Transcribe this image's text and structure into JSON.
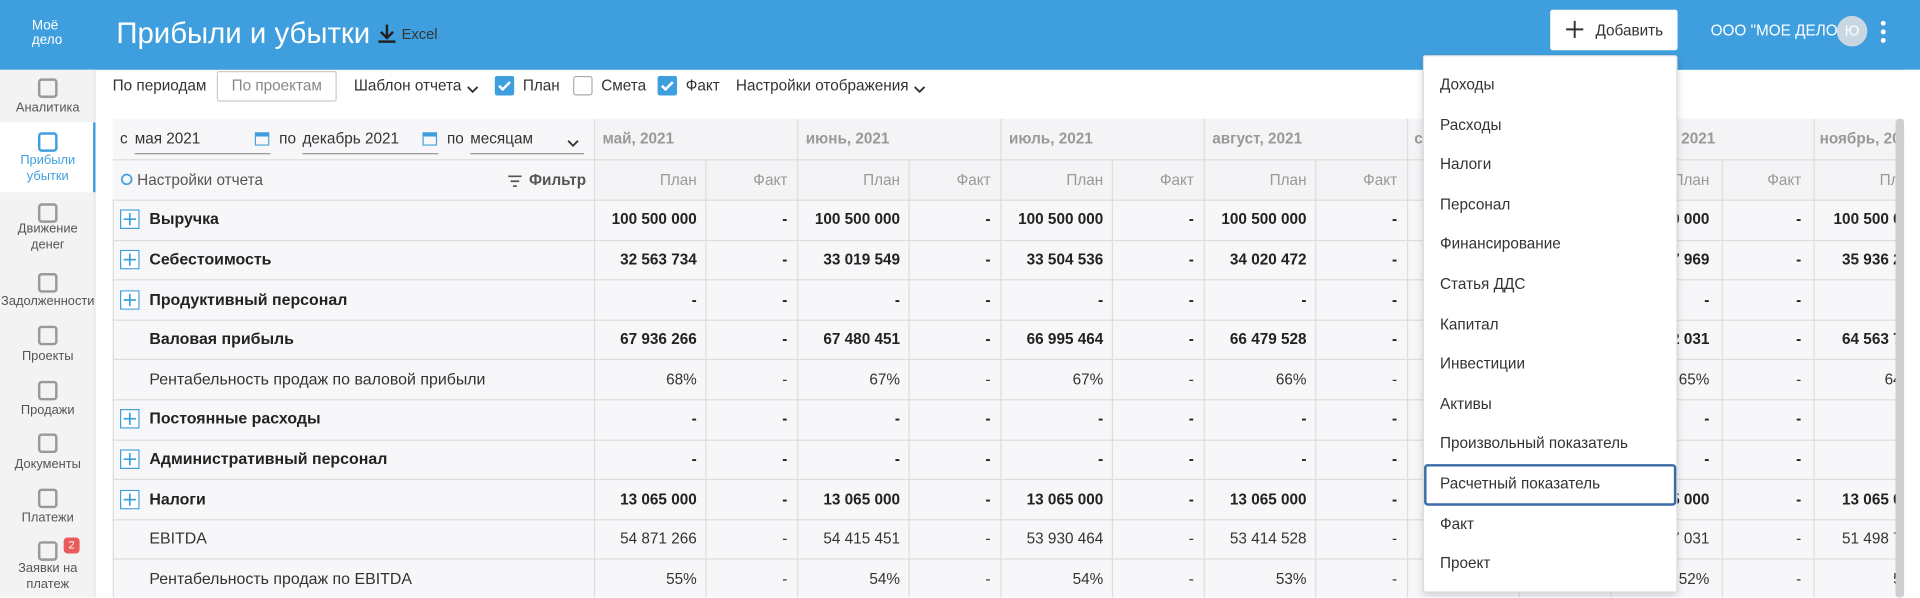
{
  "header": {
    "logo_line1": "Моё",
    "logo_line2": "дело",
    "title": "Прибыли и убытки",
    "export": "Excel",
    "add_button": "Добавить",
    "company": "ООО \"МОЕ ДЕЛО\"",
    "avatar": "Ю"
  },
  "sidebar": {
    "items": [
      "Аналитика",
      "Прибыли убытки",
      "Движение денег",
      "Задолженности",
      "Проекты",
      "Продажи",
      "Документы",
      "Платежи",
      "Заявки на платеж"
    ],
    "badge": "2"
  },
  "toolbar": {
    "by_periods": "По периодам",
    "by_projects": "По проектам",
    "template": "Шаблон отчета",
    "checkboxes": [
      {
        "label": "План",
        "checked": true
      },
      {
        "label": "Смета",
        "checked": false
      },
      {
        "label": "Факт",
        "checked": true
      }
    ],
    "display_settings": "Настройки отображения"
  },
  "filters": {
    "from_prefix": "с",
    "from": "мая 2021",
    "to_prefix": "по",
    "to": "декабрь 2021",
    "by_prefix": "по",
    "by": "месяцам",
    "report_settings": "Настройки отчета",
    "filter": "Фильтр"
  },
  "table": {
    "plan_label": "План",
    "fact_label": "Факт",
    "rows": [
      {
        "name": "Выручка",
        "bold": true,
        "expandable": true
      },
      {
        "name": "Себестоимость",
        "bold": true,
        "expandable": true
      },
      {
        "name": "Продуктивный персонал",
        "bold": true,
        "expandable": true
      },
      {
        "name": "Валовая прибыль",
        "bold": true,
        "expandable": false
      },
      {
        "name": "Рентабельность продаж по валовой прибыли",
        "bold": false,
        "expandable": false
      },
      {
        "name": "Постоянные расходы",
        "bold": true,
        "expandable": true
      },
      {
        "name": "Административный персонал",
        "bold": true,
        "expandable": true
      },
      {
        "name": "Налоги",
        "bold": true,
        "expandable": true
      },
      {
        "name": "EBITDA",
        "bold": false,
        "expandable": false
      },
      {
        "name": "Рентабельность продаж по EBITDA",
        "bold": false,
        "expandable": false
      }
    ],
    "months": [
      {
        "label": "май, 2021",
        "plan": [
          "100 500 000",
          "32 563 734",
          "-",
          "67 936 266",
          "68%",
          "-",
          "-",
          "13 065 000",
          "54 871 266",
          "55%"
        ],
        "fact": [
          "-",
          "-",
          "-",
          "-",
          "-",
          "-",
          "-",
          "-",
          "-",
          "-"
        ]
      },
      {
        "label": "июнь, 2021",
        "plan": [
          "100 500 000",
          "33 019 549",
          "-",
          "67 480 451",
          "67%",
          "-",
          "-",
          "13 065 000",
          "54 415 451",
          "54%"
        ],
        "fact": [
          "-",
          "-",
          "-",
          "-",
          "-",
          "-",
          "-",
          "-",
          "-",
          "-"
        ]
      },
      {
        "label": "июль, 2021",
        "plan": [
          "100 500 000",
          "33 504 536",
          "-",
          "66 995 464",
          "67%",
          "-",
          "-",
          "13 065 000",
          "53 930 464",
          "54%"
        ],
        "fact": [
          "-",
          "-",
          "-",
          "-",
          "-",
          "-",
          "-",
          "-",
          "-",
          "-"
        ]
      },
      {
        "label": "август, 2021",
        "plan": [
          "100 500 000",
          "34 020 472",
          "-",
          "66 479 528",
          "66%",
          "-",
          "-",
          "13 065 000",
          "53 414 528",
          "53%"
        ],
        "fact": [
          "-",
          "-",
          "-",
          "-",
          "-",
          "-",
          "-",
          "-",
          "-",
          "-"
        ]
      }
    ],
    "cut": {
      "sep_header": "с",
      "oct_header": "2021",
      "oct_plan": [
        "0 000",
        "7 969",
        "-",
        "2 031",
        "65%",
        "-",
        "-",
        "5 000",
        "7 031",
        "52%"
      ],
      "oct_fact": [
        "-",
        "-",
        "-",
        "-",
        "-",
        "-",
        "-",
        "-",
        "-",
        "-"
      ],
      "nov_header": "ноябрь, 202",
      "nov_plan_label": "Пл",
      "nov_plan": [
        "100 500 0",
        "35 936 2",
        null,
        "64 563 7",
        "64",
        null,
        null,
        "13 065 0",
        "51 498 7",
        "5"
      ]
    }
  },
  "dropdown": {
    "items": [
      {
        "label": "Доходы"
      },
      {
        "label": "Расходы"
      },
      {
        "label": "Налоги"
      },
      {
        "label": "Персонал"
      },
      {
        "label": "Финансирование"
      },
      {
        "label": "Статья ДДС"
      },
      {
        "label": "Капитал"
      },
      {
        "label": "Инвестиции"
      },
      {
        "label": "Активы"
      },
      {
        "label": "Произвольный показатель"
      },
      {
        "label": "Расчетный показатель",
        "highlighted": true
      },
      {
        "label": "Факт"
      },
      {
        "label": "Проект"
      }
    ]
  }
}
